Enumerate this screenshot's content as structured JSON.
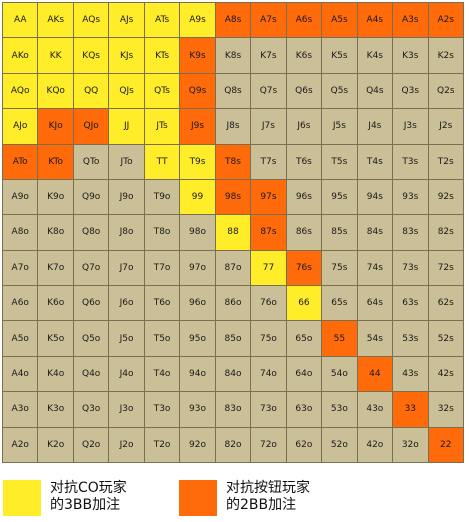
{
  "colors": {
    "none": "#cbbf97",
    "vs_co_3bb": "#ffed2a",
    "vs_button_2bb": "#ff6a0a",
    "grid_line": "#7a7050"
  },
  "grid": {
    "rows": [
      [
        "AA",
        "AKs",
        "AQs",
        "AJs",
        "ATs",
        "A9s",
        "A8s",
        "A7s",
        "A6s",
        "A5s",
        "A4s",
        "A3s",
        "A2s"
      ],
      [
        "AKo",
        "KK",
        "KQs",
        "KJs",
        "KTs",
        "K9s",
        "K8s",
        "K7s",
        "K6s",
        "K5s",
        "K4s",
        "K3s",
        "K2s"
      ],
      [
        "AQo",
        "KQo",
        "QQ",
        "QJs",
        "QTs",
        "Q9s",
        "Q8s",
        "Q7s",
        "Q6s",
        "Q5s",
        "Q4s",
        "Q3s",
        "Q2s"
      ],
      [
        "AJo",
        "KJo",
        "QJo",
        "JJ",
        "JTs",
        "J9s",
        "J8s",
        "J7s",
        "J6s",
        "J5s",
        "J4s",
        "J3s",
        "J2s"
      ],
      [
        "ATo",
        "KTo",
        "QTo",
        "JTo",
        "TT",
        "T9s",
        "T8s",
        "T7s",
        "T6s",
        "T5s",
        "T4s",
        "T3s",
        "T2s"
      ],
      [
        "A9o",
        "K9o",
        "Q9o",
        "J9o",
        "T9o",
        "99",
        "98s",
        "97s",
        "96s",
        "95s",
        "94s",
        "93s",
        "92s"
      ],
      [
        "A8o",
        "K8o",
        "Q8o",
        "J8o",
        "T8o",
        "98o",
        "88",
        "87s",
        "86s",
        "85s",
        "84s",
        "83s",
        "82s"
      ],
      [
        "A7o",
        "K7o",
        "Q7o",
        "J7o",
        "T7o",
        "97o",
        "87o",
        "77",
        "76s",
        "75s",
        "74s",
        "73s",
        "72s"
      ],
      [
        "A6o",
        "K6o",
        "Q6o",
        "J6o",
        "T6o",
        "96o",
        "86o",
        "76o",
        "66",
        "65s",
        "64s",
        "63s",
        "62s"
      ],
      [
        "A5o",
        "K5o",
        "Q5o",
        "J5o",
        "T5o",
        "95o",
        "85o",
        "75o",
        "65o",
        "55",
        "54s",
        "53s",
        "52s"
      ],
      [
        "A4o",
        "K4o",
        "Q4o",
        "J4o",
        "T4o",
        "94o",
        "84o",
        "74o",
        "64o",
        "54o",
        "44",
        "43s",
        "42s"
      ],
      [
        "A3o",
        "K3o",
        "Q3o",
        "J3o",
        "T3o",
        "93o",
        "83o",
        "73o",
        "63o",
        "53o",
        "43o",
        "33",
        "32s"
      ],
      [
        "A2o",
        "K2o",
        "Q2o",
        "J2o",
        "T2o",
        "92o",
        "82o",
        "72o",
        "62o",
        "52o",
        "42o",
        "32o",
        "22"
      ]
    ],
    "highlight": [
      [
        "y",
        "y",
        "y",
        "y",
        "y",
        "y",
        "o",
        "o",
        "o",
        "o",
        "o",
        "o",
        "o"
      ],
      [
        "y",
        "y",
        "y",
        "y",
        "y",
        "o",
        "n",
        "n",
        "n",
        "n",
        "n",
        "n",
        "n"
      ],
      [
        "y",
        "y",
        "y",
        "y",
        "y",
        "o",
        "n",
        "n",
        "n",
        "n",
        "n",
        "n",
        "n"
      ],
      [
        "y",
        "o",
        "o",
        "y",
        "y",
        "o",
        "n",
        "n",
        "n",
        "n",
        "n",
        "n",
        "n"
      ],
      [
        "o",
        "o",
        "n",
        "n",
        "y",
        "y",
        "o",
        "n",
        "n",
        "n",
        "n",
        "n",
        "n"
      ],
      [
        "n",
        "n",
        "n",
        "n",
        "n",
        "y",
        "o",
        "o",
        "n",
        "n",
        "n",
        "n",
        "n"
      ],
      [
        "n",
        "n",
        "n",
        "n",
        "n",
        "n",
        "y",
        "o",
        "n",
        "n",
        "n",
        "n",
        "n"
      ],
      [
        "n",
        "n",
        "n",
        "n",
        "n",
        "n",
        "n",
        "y",
        "o",
        "n",
        "n",
        "n",
        "n"
      ],
      [
        "n",
        "n",
        "n",
        "n",
        "n",
        "n",
        "n",
        "n",
        "y",
        "n",
        "n",
        "n",
        "n"
      ],
      [
        "n",
        "n",
        "n",
        "n",
        "n",
        "n",
        "n",
        "n",
        "n",
        "o",
        "n",
        "n",
        "n"
      ],
      [
        "n",
        "n",
        "n",
        "n",
        "n",
        "n",
        "n",
        "n",
        "n",
        "n",
        "o",
        "n",
        "n"
      ],
      [
        "n",
        "n",
        "n",
        "n",
        "n",
        "n",
        "n",
        "n",
        "n",
        "n",
        "n",
        "o",
        "n"
      ],
      [
        "n",
        "n",
        "n",
        "n",
        "n",
        "n",
        "n",
        "n",
        "n",
        "n",
        "n",
        "n",
        "o"
      ]
    ]
  },
  "legend": [
    {
      "key": "vs_co_3bb",
      "label": "对抗CO玩家\n的3BB加注"
    },
    {
      "key": "vs_button_2bb",
      "label": "对抗按钮玩家\n的2BB加注"
    }
  ]
}
